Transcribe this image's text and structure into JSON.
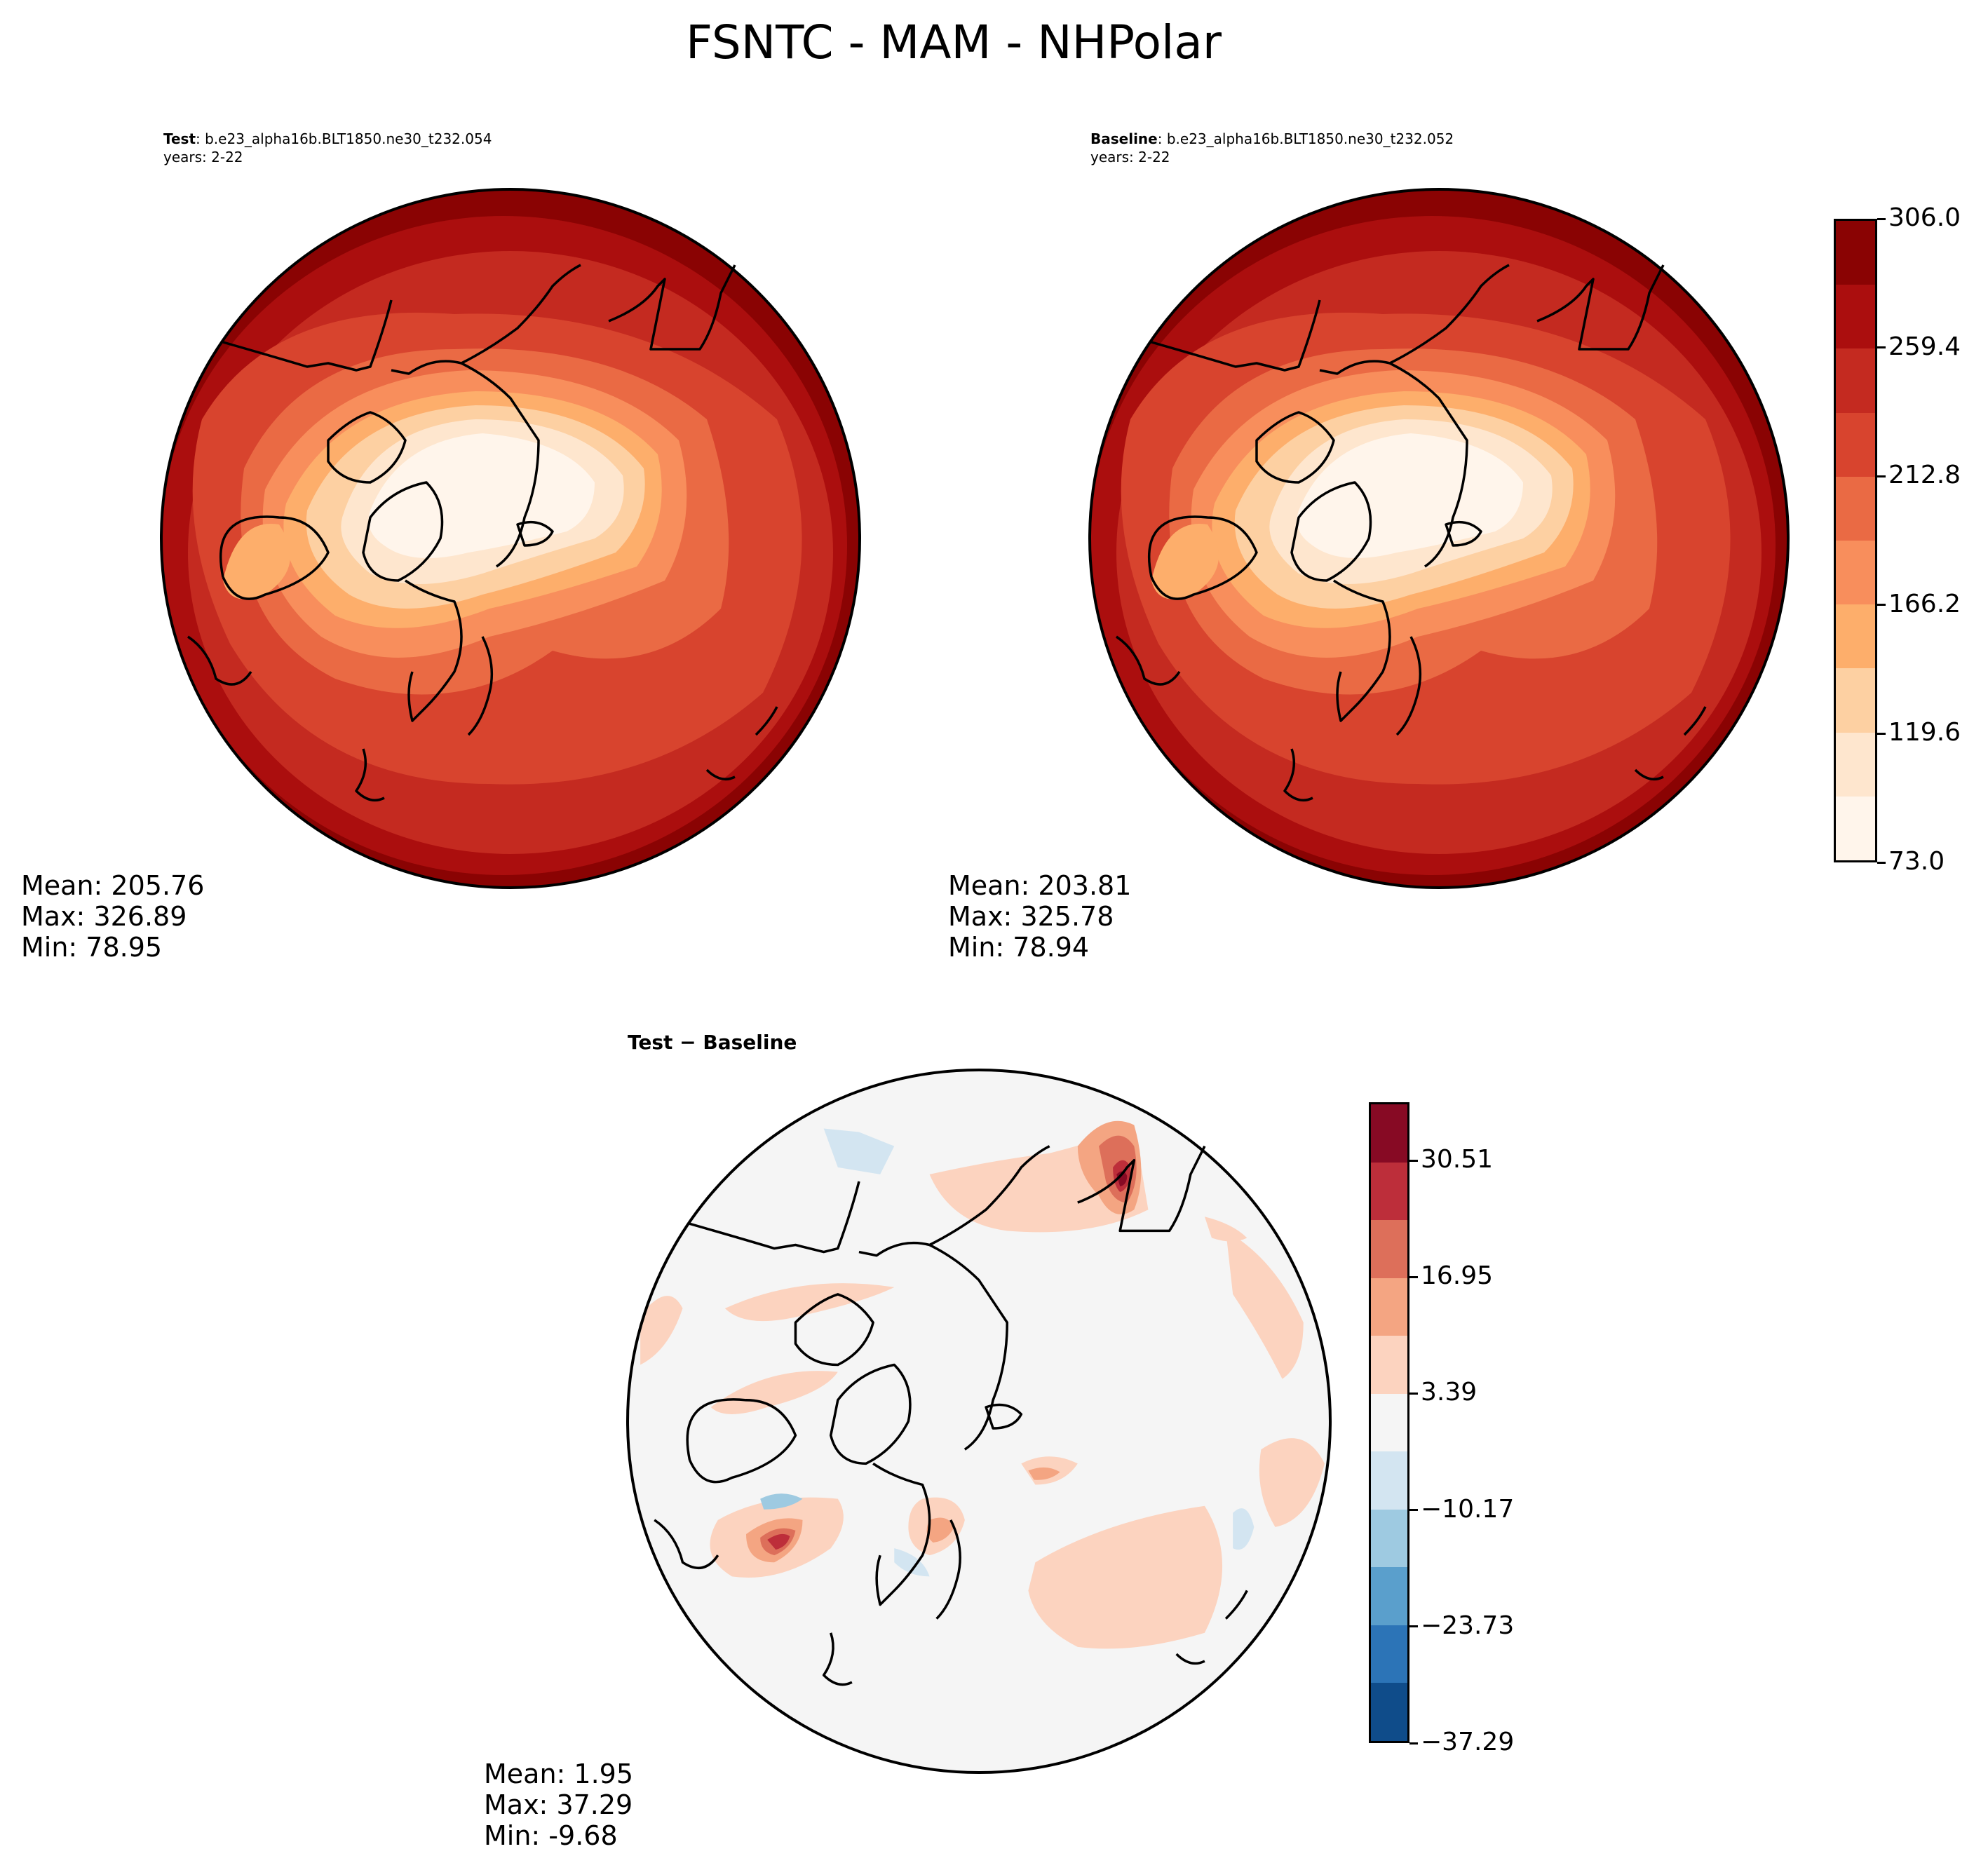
{
  "title": "FSNTC - MAM - NHPolar",
  "panels": {
    "test": {
      "label": "Test",
      "case": ": b.e23_alpha16b.BLT1850.ne30_t232.054",
      "years": "years: 2-22",
      "mean": "Mean: 205.76",
      "max": "Max: 326.89",
      "min": "Min: 78.95"
    },
    "baseline": {
      "label": "Baseline",
      "case": ": b.e23_alpha16b.BLT1850.ne30_t232.052",
      "years": "years: 2-22",
      "mean": "Mean: 203.81",
      "max": "Max: 325.78",
      "min": "Min: 78.94"
    },
    "diff": {
      "label": "Test − Baseline",
      "mean": "Mean:  1.95",
      "max": "Max: 37.29",
      "min": "Min: -9.68"
    }
  },
  "colorbars": {
    "main": {
      "ticks": [
        "73.0",
        "119.6",
        "166.2",
        "212.8",
        "259.4",
        "306.0"
      ],
      "colors": [
        "#fff5eb",
        "#fee6ce",
        "#fdd0a2",
        "#fdae6b",
        "#f88e5c",
        "#ea6a44",
        "#d8442e",
        "#c42a20",
        "#ab0e0e",
        "#8a0303"
      ]
    },
    "diff": {
      "ticks": [
        "−37.29",
        "−23.73",
        "−10.17",
        "3.39",
        "16.95",
        "30.51"
      ],
      "colors": [
        "#0f4c8a",
        "#2c74b7",
        "#5a9fcc",
        "#9ecae1",
        "#d3e5f1",
        "#f5f5f5",
        "#fcd3bf",
        "#f4a582",
        "#dd6f5a",
        "#bd2e3a",
        "#870a24"
      ]
    }
  }
}
